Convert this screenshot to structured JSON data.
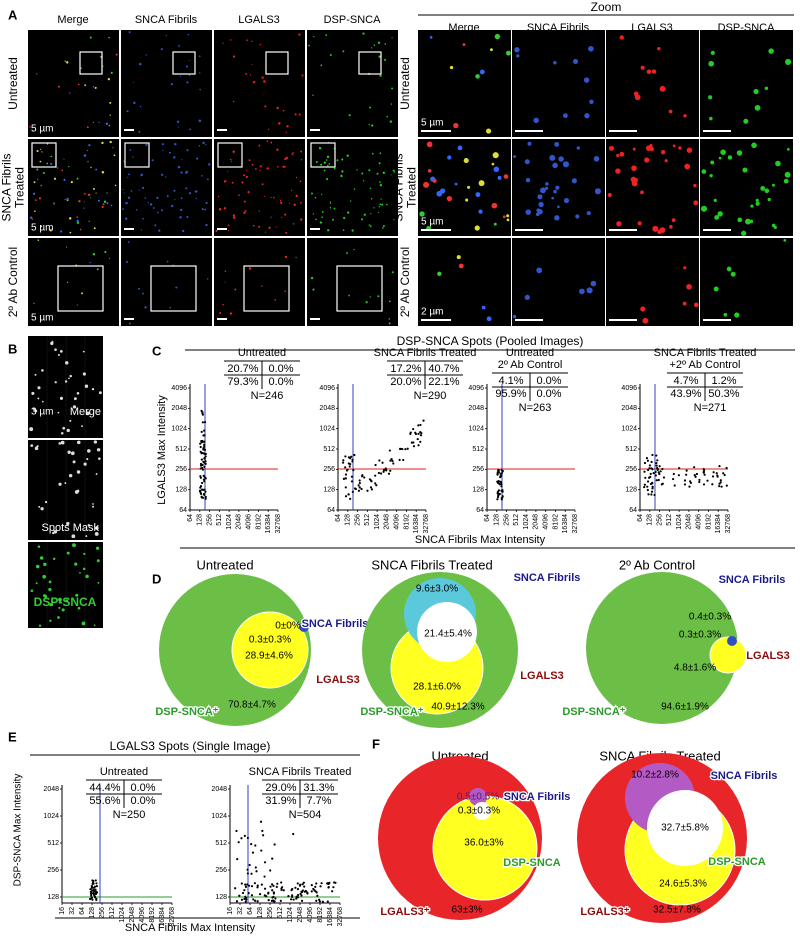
{
  "A": {
    "label": "A",
    "zoom_title": "Zoom",
    "columns": [
      "Merge",
      "SNCA Fibrils",
      "LGALS3",
      "DSP-SNCA"
    ],
    "rows": [
      [
        "Untreated"
      ],
      [
        "SNCA Fibrils",
        "Treated"
      ],
      [
        "2º Ab Control"
      ]
    ],
    "scale_bars": [
      "5 µm",
      "5 µm",
      "5 µm"
    ],
    "zoom_scale_bars": [
      "5 µm",
      "5 µm",
      "2 µm"
    ]
  },
  "B": {
    "label": "B",
    "scale_bar": "3 µm",
    "images": [
      "Merge",
      "Spots Mask",
      "DSP-SNCA"
    ]
  },
  "C": {
    "label": "C",
    "title": "DSP-SNCA Spots (Pooled Images)",
    "y_label": "LGALS3 Max Intensity",
    "x_label": "SNCA Fibrils Max Intensity",
    "yticks": [
      "4096",
      "2048",
      "1024",
      "512",
      "256",
      "128",
      "64"
    ],
    "xticks": [
      "64",
      "128",
      "256",
      "512",
      "1024",
      "2048",
      "4096",
      "8192",
      "16384",
      "32768"
    ],
    "plots": [
      {
        "title": [
          "Untreated"
        ],
        "quadrants": [
          "20.7%",
          "0.0%",
          "79.3%",
          "0.0%"
        ],
        "n": "N=246"
      },
      {
        "title": [
          "SNCA Fibrils Treated"
        ],
        "quadrants": [
          "17.2%",
          "40.7%",
          "20.0%",
          "22.1%"
        ],
        "n": "N=290"
      },
      {
        "title": [
          "Untreated",
          "2º Ab Control"
        ],
        "quadrants": [
          "4.1%",
          "0.0%",
          "95.9%",
          "0.0%"
        ],
        "n": "N=263"
      },
      {
        "title": [
          "SNCA Fibrils Treated",
          "+2º Ab Control"
        ],
        "quadrants": [
          "4.7%",
          "1.2%",
          "43.9%",
          "50.3%"
        ],
        "n": "N=271"
      }
    ]
  },
  "D": {
    "label": "D",
    "venns": [
      {
        "title": "Untreated",
        "sets": [
          "SNCA Fibrils",
          "LGALS3",
          "DSP-SNCA⁺"
        ],
        "values": [
          "0±0%",
          "0.3±0.3%",
          "28.9±4.6%",
          "70.8±4.7%"
        ]
      },
      {
        "title": "SNCA Fibrils Treated",
        "sets": [
          "SNCA Fibrils",
          "LGALS3",
          "DSP-SNCA⁺"
        ],
        "values": [
          "9.6±3.0%",
          "21.4±5.4%",
          "28.1±6.0%",
          "40.9±12.3%"
        ]
      },
      {
        "title": "2º Ab Control",
        "sets": [
          "SNCA Fibrils",
          "LGALS3",
          "DSP-SNCA⁺"
        ],
        "values": [
          "0.4±0.3%",
          "0.3±0.3%",
          "4.8±1.6%",
          "94.6±1.9%"
        ]
      }
    ]
  },
  "E": {
    "label": "E",
    "title": "LGALS3 Spots (Single Image)",
    "y_label": "DSP-SNCA Max Intensity",
    "x_label": "SNCA Fibrils Max Intensity",
    "yticks": [
      "2048",
      "1024",
      "512",
      "256",
      "128"
    ],
    "xticks": [
      "16",
      "32",
      "64",
      "128",
      "256",
      "512",
      "1024",
      "2048",
      "4096",
      "8192",
      "16384",
      "32768"
    ],
    "plots": [
      {
        "title": [
          "Untreated"
        ],
        "quadrants": [
          "44.4%",
          "0.0%",
          "55.6%",
          "0.0%"
        ],
        "n": "N=250"
      },
      {
        "title": [
          "SNCA Fibrils Treated"
        ],
        "quadrants": [
          "29.0%",
          "31.3%",
          "31.9%",
          "7.7%"
        ],
        "n": "N=504"
      }
    ]
  },
  "F": {
    "label": "F",
    "venns": [
      {
        "title": "Untreated",
        "sets": [
          "SNCA Fibrils",
          "DSP-SNCA",
          "LGALS3⁺"
        ],
        "values": [
          "0.5±0.5%",
          "0.3±0.3%",
          "36.0±3%",
          "63±3%"
        ]
      },
      {
        "title": "SNCA Fibrils Treated",
        "sets": [
          "SNCA Fibrils",
          "DSP-SNCA",
          "LGALS3⁺"
        ],
        "values": [
          "10.2±2.8%",
          "32.7±5.8%",
          "24.6±5.3%",
          "32.5±7.8%"
        ]
      }
    ]
  }
}
